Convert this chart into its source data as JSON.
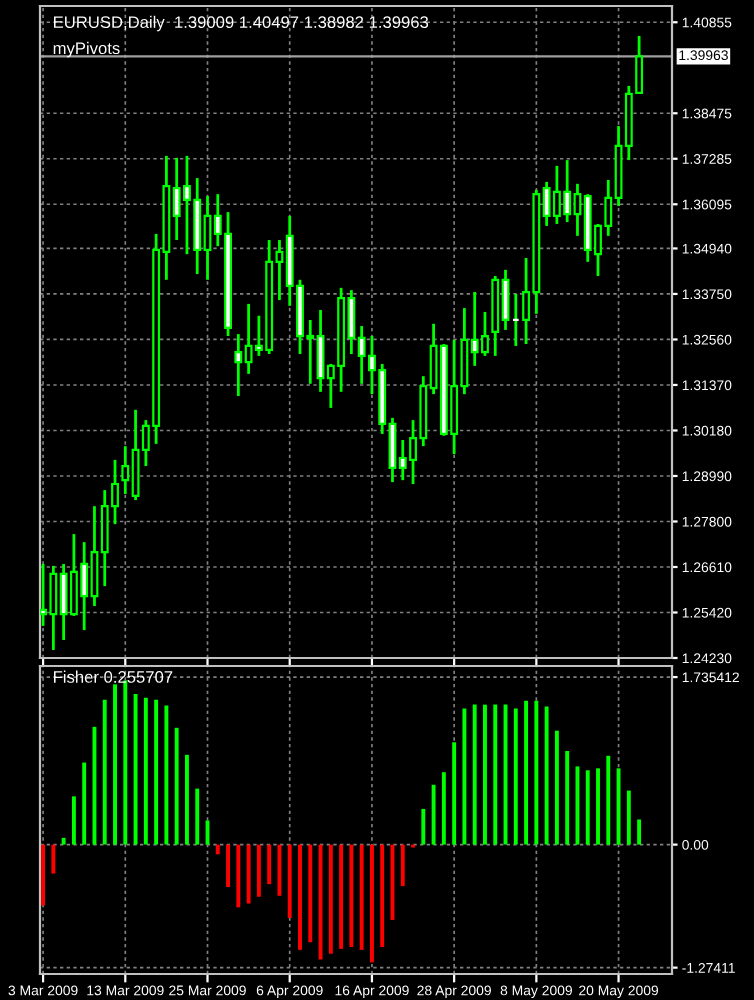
{
  "chart_data": [
    {
      "type": "candlestick",
      "title": "EURUSD,Daily  1.39009 1.40497 1.38982 1.39963",
      "subtitle": "myPivots",
      "categories": [
        null,
        null,
        null,
        null,
        null,
        null,
        null,
        null,
        null,
        null,
        null,
        null,
        null,
        null,
        null,
        null,
        null,
        null,
        null,
        null,
        null,
        null,
        null,
        null,
        null,
        null,
        null,
        null,
        null,
        null,
        null,
        null,
        null,
        null,
        null,
        null,
        null,
        null,
        null,
        null,
        null,
        null,
        null,
        null,
        null,
        null,
        null,
        null,
        null,
        null,
        null,
        null,
        null,
        null,
        null,
        null,
        null,
        null,
        null
      ],
      "ohlc": [
        [
          1.2549,
          1.2669,
          1.2507,
          1.2538
        ],
        [
          1.2538,
          1.2664,
          1.2444,
          1.2643
        ],
        [
          1.2643,
          1.2669,
          1.247,
          1.2538
        ],
        [
          1.2538,
          1.2747,
          1.2533,
          1.2648
        ],
        [
          1.2669,
          1.2726,
          1.2496,
          1.2585
        ],
        [
          1.2585,
          1.282,
          1.2559,
          1.27
        ],
        [
          1.27,
          1.2862,
          1.2611,
          1.282
        ],
        [
          1.282,
          1.2941,
          1.2773,
          1.2878
        ],
        [
          1.2888,
          1.2977,
          1.2852,
          1.2925
        ],
        [
          1.2847,
          1.3072,
          1.2836,
          1.2967
        ],
        [
          1.2967,
          1.3045,
          1.2925,
          1.303
        ],
        [
          1.303,
          1.3532,
          1.2983,
          1.349
        ],
        [
          1.3485,
          1.3736,
          1.3412,
          1.3657
        ],
        [
          1.3652,
          1.3731,
          1.3516,
          1.3579
        ],
        [
          1.3657,
          1.3736,
          1.3479,
          1.3621
        ],
        [
          1.3621,
          1.3678,
          1.3427,
          1.349
        ],
        [
          1.349,
          1.3631,
          1.3412,
          1.3579
        ],
        [
          1.3579,
          1.3636,
          1.35,
          1.3532
        ],
        [
          1.3532,
          1.3589,
          1.3265,
          1.3286
        ],
        [
          1.3223,
          1.327,
          1.3108,
          1.3197
        ],
        [
          1.3197,
          1.3349,
          1.3166,
          1.3239
        ],
        [
          1.3239,
          1.3318,
          1.3213,
          1.3229
        ],
        [
          1.3229,
          1.3516,
          1.3218,
          1.3459
        ],
        [
          1.3459,
          1.3516,
          1.3359,
          1.3485
        ],
        [
          1.3527,
          1.3579,
          1.3344,
          1.3396
        ],
        [
          1.3396,
          1.3412,
          1.3218,
          1.3265
        ],
        [
          1.3265,
          1.3307,
          1.314,
          1.326
        ],
        [
          1.3265,
          1.3333,
          1.3119,
          1.3155
        ],
        [
          1.3155,
          1.3192,
          1.3077,
          1.3187
        ],
        [
          1.3187,
          1.3391,
          1.3119,
          1.3364
        ],
        [
          1.3364,
          1.3385,
          1.3218,
          1.326
        ],
        [
          1.326,
          1.3291,
          1.314,
          1.3213
        ],
        [
          1.3213,
          1.3265,
          1.3113,
          1.3176
        ],
        [
          1.3176,
          1.3192,
          1.3009,
          1.3035
        ],
        [
          1.3035,
          1.3051,
          1.2883,
          1.292
        ],
        [
          1.2946,
          1.2993,
          1.2888,
          1.292
        ],
        [
          1.2941,
          1.3045,
          1.2878,
          1.2998
        ],
        [
          1.2998,
          1.316,
          1.2977,
          1.3134
        ],
        [
          1.3129,
          1.3297,
          1.3113,
          1.3239
        ],
        [
          1.3239,
          1.3244,
          1.3004,
          1.3009
        ],
        [
          1.3009,
          1.3255,
          1.2956,
          1.3134
        ],
        [
          1.3134,
          1.3338,
          1.3113,
          1.3255
        ],
        [
          1.3255,
          1.338,
          1.3187,
          1.3223
        ],
        [
          1.3223,
          1.3328,
          1.3213,
          1.3265
        ],
        [
          1.3276,
          1.3422,
          1.3213,
          1.3412
        ],
        [
          1.3412,
          1.3438,
          1.3281,
          1.3307
        ],
        [
          1.3307,
          1.3375,
          1.3239,
          1.3307
        ],
        [
          1.3307,
          1.3469,
          1.3244,
          1.338
        ],
        [
          1.338,
          1.3647,
          1.3323,
          1.3636
        ],
        [
          1.3652,
          1.3668,
          1.3553,
          1.3579
        ],
        [
          1.3579,
          1.371,
          1.3558,
          1.3642
        ],
        [
          1.3642,
          1.3725,
          1.3563,
          1.3584
        ],
        [
          1.3584,
          1.3663,
          1.3527,
          1.3636
        ],
        [
          1.3631,
          1.3636,
          1.3459,
          1.349
        ],
        [
          1.3479,
          1.3558,
          1.3422,
          1.3553
        ],
        [
          1.3553,
          1.3673,
          1.3527,
          1.3626
        ],
        [
          1.3626,
          1.3814,
          1.3605,
          1.3762
        ],
        [
          1.3762,
          1.3919,
          1.3725,
          1.3898
        ],
        [
          1.39009,
          1.40497,
          1.38982,
          1.39963
        ]
      ],
      "color": "#00ff00",
      "colors": [
        "#ffffff",
        "#000000",
        "#ffffff",
        "#000000",
        "#ffffff",
        "#000000",
        "#000000",
        "#000000",
        "#000000",
        "#000000",
        "#000000",
        "#000000",
        "#000000",
        "#ffffff",
        "#ffffff",
        "#ffffff",
        "#000000",
        "#ffffff",
        "#ffffff",
        "#ffffff",
        "#000000",
        "#ffffff",
        "#000000",
        "#000000",
        "#ffffff",
        "#ffffff",
        "#ffffff",
        "#ffffff",
        "#000000",
        "#000000",
        "#ffffff",
        "#ffffff",
        "#ffffff",
        "#ffffff",
        "#ffffff",
        "#ffffff",
        "#000000",
        "#000000",
        "#000000",
        "#ffffff",
        "#000000",
        "#000000",
        "#ffffff",
        "#000000",
        "#000000",
        "#ffffff",
        "#ffffff",
        "#000000",
        "#000000",
        "#ffffff",
        "#000000",
        "#ffffff",
        "#000000",
        "#ffffff",
        "#000000",
        "#000000",
        "#000000",
        "#000000",
        "#000000"
      ],
      "ylim": [
        1.2423,
        1.4128
      ],
      "yticks": [
        {
          "value": 1.2423,
          "label": "1.24230"
        },
        {
          "value": 1.2542,
          "label": "1.25420"
        },
        {
          "value": 1.2661,
          "label": "1.26610"
        },
        {
          "value": 1.278,
          "label": "1.27800"
        },
        {
          "value": 1.2899,
          "label": "1.28990"
        },
        {
          "value": 1.3018,
          "label": "1.30180"
        },
        {
          "value": 1.3137,
          "label": "1.31370"
        },
        {
          "value": 1.3256,
          "label": "1.32560"
        },
        {
          "value": 1.3375,
          "label": "1.33750"
        },
        {
          "value": 1.3494,
          "label": "1.34940"
        },
        {
          "value": 1.36095,
          "label": "1.36095"
        },
        {
          "value": 1.37285,
          "label": "1.37285"
        },
        {
          "value": 1.38475,
          "label": "1.38475"
        },
        {
          "value": 1.40855,
          "label": "1.40855"
        }
      ],
      "ref_lines": [
        {
          "axis": "y",
          "value": 1.39963,
          "label": "1.39963",
          "color": "#a0a0a0"
        }
      ],
      "grid": true,
      "tick_labels": "y"
    },
    {
      "type": "bar",
      "title": "Fisher 0.255707",
      "categories": [
        "3 Mar 2009",
        null,
        null,
        null,
        null,
        null,
        null,
        null,
        "13 Mar 2009",
        null,
        null,
        null,
        null,
        null,
        null,
        null,
        "25 Mar 2009",
        null,
        null,
        null,
        null,
        null,
        null,
        null,
        "6 Apr 2009",
        null,
        null,
        null,
        null,
        null,
        null,
        null,
        "16 Apr 2009",
        null,
        null,
        null,
        null,
        null,
        null,
        null,
        "28 Apr 2009",
        null,
        null,
        null,
        null,
        null,
        null,
        null,
        "8 May 2009",
        null,
        null,
        null,
        null,
        null,
        null,
        null,
        "20 May 2009",
        null,
        null
      ],
      "values": [
        -0.63,
        -0.3,
        0.07,
        0.5,
        0.85,
        1.22,
        1.5,
        1.66,
        1.7,
        1.56,
        1.52,
        1.5,
        1.44,
        1.21,
        0.93,
        0.58,
        0.25,
        -0.1,
        -0.44,
        -0.65,
        -0.61,
        -0.54,
        -0.41,
        -0.53,
        -0.76,
        -1.09,
        -1.01,
        -1.19,
        -1.13,
        -1.08,
        -1.06,
        -1.09,
        -1.22,
        -1.06,
        -0.78,
        -0.43,
        -0.03,
        0.37,
        0.62,
        0.75,
        1.06,
        1.41,
        1.45,
        1.45,
        1.45,
        1.45,
        1.41,
        1.49,
        1.49,
        1.43,
        1.18,
        0.97,
        0.81,
        0.77,
        0.79,
        0.92,
        0.79,
        0.56,
        0.26
      ],
      "colors": [
        "#ff0000",
        "#ff0000",
        "#00ff00",
        "#00ff00",
        "#00ff00",
        "#00ff00",
        "#00ff00",
        "#00ff00",
        "#00ff00",
        "#00ff00",
        "#00ff00",
        "#00ff00",
        "#00ff00",
        "#00ff00",
        "#00ff00",
        "#00ff00",
        "#00ff00",
        "#ff0000",
        "#ff0000",
        "#ff0000",
        "#ff0000",
        "#ff0000",
        "#ff0000",
        "#ff0000",
        "#ff0000",
        "#ff0000",
        "#ff0000",
        "#ff0000",
        "#ff0000",
        "#ff0000",
        "#ff0000",
        "#ff0000",
        "#ff0000",
        "#ff0000",
        "#ff0000",
        "#ff0000",
        "#ff0000",
        "#00ff00",
        "#00ff00",
        "#00ff00",
        "#00ff00",
        "#00ff00",
        "#00ff00",
        "#00ff00",
        "#00ff00",
        "#00ff00",
        "#00ff00",
        "#00ff00",
        "#00ff00",
        "#00ff00",
        "#00ff00",
        "#00ff00",
        "#00ff00",
        "#00ff00",
        "#00ff00",
        "#00ff00",
        "#00ff00",
        "#00ff00",
        "#00ff00"
      ],
      "ylim": [
        -1.34,
        1.85
      ],
      "yticks": [
        1.735412,
        {
          "value": 0,
          "label": "0.00"
        },
        -1.27411
      ],
      "grid": true
    }
  ]
}
